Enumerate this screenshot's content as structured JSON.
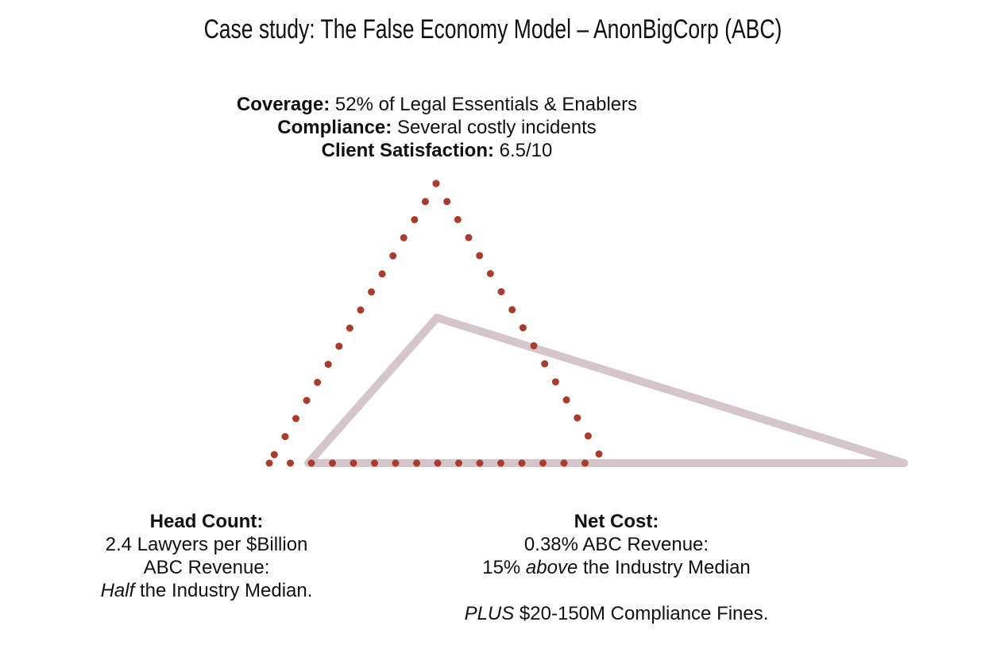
{
  "title": "Case study: The False Economy Model – AnonBigCorp (ABC)",
  "top": {
    "coverage_label": "Coverage:",
    "coverage_value": " 52% of Legal Essentials & Enablers",
    "compliance_label": "Compliance:",
    "compliance_value": " Several costly incidents",
    "satisfaction_label": "Client Satisfaction:",
    "satisfaction_value": " 6.5/10"
  },
  "head_count": {
    "label": "Head Count:",
    "line1": "2.4 Lawyers per $Billion",
    "line2": "ABC Revenue:",
    "line3_em": "Half",
    "line3_rest": " the Industry Median."
  },
  "net_cost": {
    "label": "Net Cost:",
    "line1": "0.38% ABC Revenue:",
    "line2_pre": "15% ",
    "line2_em": "above",
    "line2_post": " the Industry Median",
    "line3_em": "PLUS",
    "line3_rest": " $20-150M Compliance Fines."
  },
  "colors": {
    "dotted_triangle": "#a93c2c",
    "solid_triangle": "#d5c6cc"
  }
}
